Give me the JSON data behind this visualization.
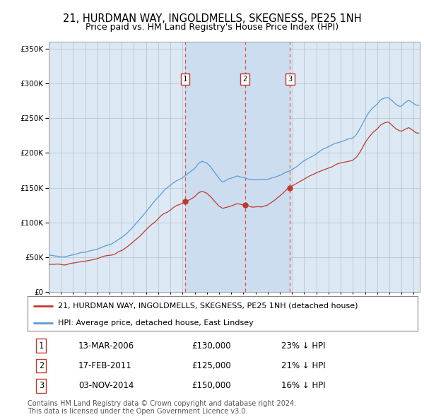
{
  "title": "21, HURDMAN WAY, INGOLDMELLS, SKEGNESS, PE25 1NH",
  "subtitle": "Price paid vs. HM Land Registry's House Price Index (HPI)",
  "legend_property": "21, HURDMAN WAY, INGOLDMELLS, SKEGNESS, PE25 1NH (detached house)",
  "legend_hpi": "HPI: Average price, detached house, East Lindsey",
  "footer_line1": "Contains HM Land Registry data © Crown copyright and database right 2024.",
  "footer_line2": "This data is licensed under the Open Government Licence v3.0.",
  "transactions": [
    {
      "num": 1,
      "date": "13-MAR-2006",
      "price": "£130,000",
      "pct": "23% ↓ HPI"
    },
    {
      "num": 2,
      "date": "17-FEB-2011",
      "price": "£125,000",
      "pct": "21% ↓ HPI"
    },
    {
      "num": 3,
      "date": "03-NOV-2014",
      "price": "£150,000",
      "pct": "16% ↓ HPI"
    }
  ],
  "sale_dates_decimal": [
    2006.204,
    2011.123,
    2014.839
  ],
  "sale_prices": [
    130000,
    125000,
    150000
  ],
  "ylim": [
    0,
    360000
  ],
  "yticks": [
    0,
    50000,
    100000,
    150000,
    200000,
    250000,
    300000,
    350000
  ],
  "xlim_start": 1995.0,
  "xlim_end": 2025.5,
  "background_color": "#ffffff",
  "plot_bg_color": "#dce9f5",
  "grid_color": "#b0bec5",
  "hpi_color": "#5b9bd5",
  "property_color": "#c0392b",
  "shaded_region_color": "#ccddf0",
  "dashed_line_color": "#e05050",
  "title_fontsize": 10.5,
  "subtitle_fontsize": 9,
  "tick_fontsize": 7.5,
  "legend_fontsize": 8,
  "table_fontsize": 8.5,
  "footer_fontsize": 7
}
